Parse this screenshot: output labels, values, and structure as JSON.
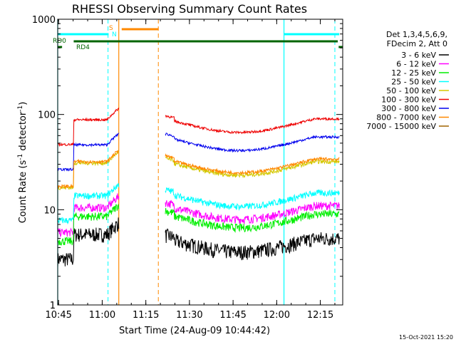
{
  "chart_data": {
    "type": "line",
    "title": "RHESSI Observing Summary Count Rates",
    "xlabel": "Start Time (24-Aug-09 10:44:42)",
    "ylabel": "Count Rate (s",
    "ylabel_exp": "-1",
    "ylabel_tail": " detector",
    "ylabel_exp2": "-1",
    "ylabel_close": ")",
    "y_scale": "log",
    "ylim": [
      1,
      1000
    ],
    "xlim_minutes": [
      0,
      98
    ],
    "x_ticks": [
      {
        "t": 0.3,
        "label": "10:45"
      },
      {
        "t": 15.3,
        "label": "11:00"
      },
      {
        "t": 30.3,
        "label": "11:15"
      },
      {
        "t": 45.3,
        "label": "11:30"
      },
      {
        "t": 60.3,
        "label": "11:45"
      },
      {
        "t": 75.3,
        "label": "12:00"
      },
      {
        "t": 90.3,
        "label": "12:15"
      }
    ],
    "y_ticks": [
      {
        "v": 1,
        "label": "1"
      },
      {
        "v": 10,
        "label": "10"
      },
      {
        "v": 100,
        "label": "100"
      },
      {
        "v": 1000,
        "label": "1000"
      }
    ],
    "legend_header": [
      "Det 1,3,4,5,6,9,",
      "FDecim 2, Att 0"
    ],
    "series": [
      {
        "name": "3 - 6 keV",
        "color": "#000000"
      },
      {
        "name": "6 - 12 keV",
        "color": "#ff00ff"
      },
      {
        "name": "12 - 25 keV",
        "color": "#00ee00"
      },
      {
        "name": "25 - 50 keV",
        "color": "#00ffff"
      },
      {
        "name": "50 - 100 keV",
        "color": "#d4c800"
      },
      {
        "name": "100 - 300 keV",
        "color": "#ee0000"
      },
      {
        "name": "300 - 800 keV",
        "color": "#0000ee"
      },
      {
        "name": "800 - 7000 keV",
        "color": "#ff8800"
      },
      {
        "name": "7000 - 15000 keV",
        "color": "#a06400"
      }
    ],
    "flags": [
      {
        "label": "RD0",
        "color": "#006400"
      },
      {
        "label": "RD4",
        "color": "#006400"
      },
      {
        "label": "S",
        "color": "#ff8800"
      },
      {
        "label": "N",
        "color": "#00ffff"
      }
    ]
  },
  "footer": {
    "timestamp": "15-Oct-2021 15:20"
  }
}
